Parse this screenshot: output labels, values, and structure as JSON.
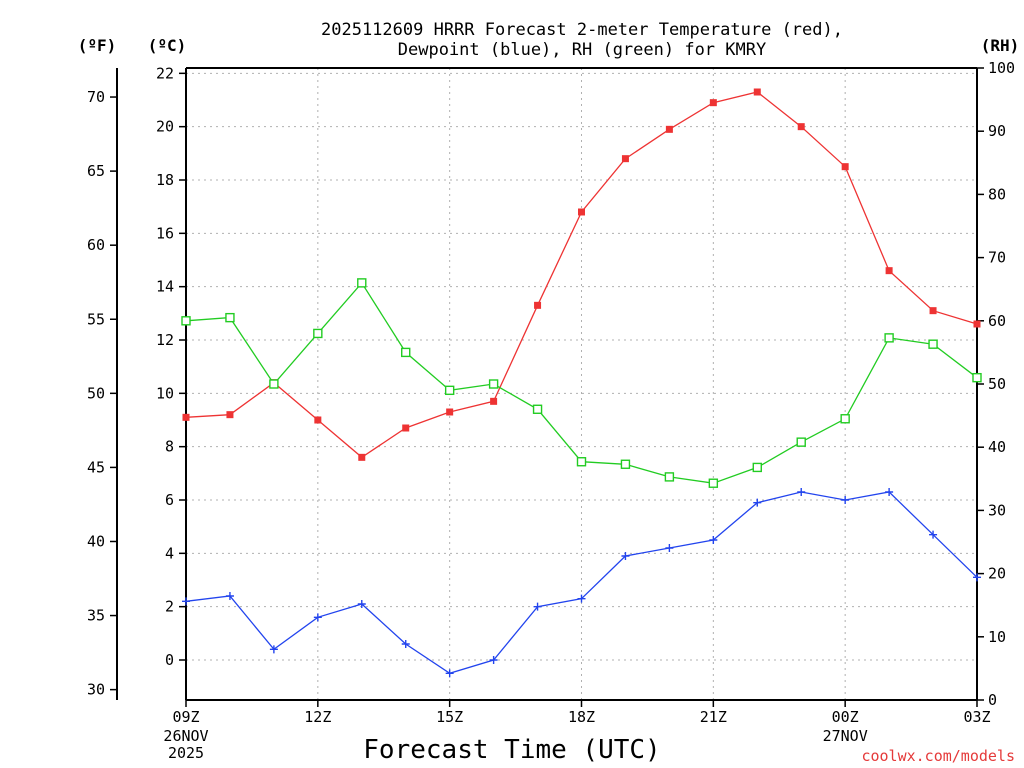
{
  "chart_data": {
    "type": "line",
    "title_lines": [
      "2025112609 HRRR Forecast 2-meter Temperature (red),",
      "Dewpoint (blue), RH (green) for KMRY"
    ],
    "xlabel": "Forecast Time (UTC)",
    "credit": "coolwx.com/models",
    "units": {
      "fahrenheit": "(ºF)",
      "celsius": "(ºC)",
      "rh": "(RH)"
    },
    "x_hours": [
      9,
      10,
      11,
      12,
      13,
      14,
      15,
      16,
      17,
      18,
      19,
      20,
      21,
      22,
      23,
      24,
      25,
      26,
      27
    ],
    "xlim": [
      9,
      27
    ],
    "x_ticks": [
      {
        "hour": 9,
        "label": "09Z",
        "date_lines": [
          "26NOV",
          "2025"
        ]
      },
      {
        "hour": 12,
        "label": "12Z",
        "date_lines": []
      },
      {
        "hour": 15,
        "label": "15Z",
        "date_lines": []
      },
      {
        "hour": 18,
        "label": "18Z",
        "date_lines": []
      },
      {
        "hour": 21,
        "label": "21Z",
        "date_lines": []
      },
      {
        "hour": 24,
        "label": "00Z",
        "date_lines": [
          "27NOV"
        ]
      },
      {
        "hour": 27,
        "label": "03Z",
        "date_lines": []
      }
    ],
    "celsius_axis": {
      "ylim": [
        -1.5,
        22.2
      ],
      "ticks": [
        0,
        2,
        4,
        6,
        8,
        10,
        12,
        14,
        16,
        18,
        20,
        22
      ]
    },
    "fahrenheit_axis": {
      "ticks": [
        30,
        35,
        40,
        45,
        50,
        55,
        60,
        65,
        70
      ]
    },
    "rh_axis": {
      "ylim": [
        0,
        100
      ],
      "ticks": [
        0,
        10,
        20,
        30,
        40,
        50,
        60,
        70,
        80,
        90,
        100
      ]
    },
    "series": [
      {
        "name": "Temperature",
        "units": "C",
        "color": "#ee3333",
        "marker": "filled-square",
        "values": [
          9.1,
          9.2,
          10.4,
          9.0,
          7.6,
          8.7,
          9.3,
          9.7,
          13.3,
          16.8,
          18.8,
          19.9,
          20.9,
          21.3,
          20.0,
          18.5,
          14.6,
          13.1,
          12.6
        ]
      },
      {
        "name": "Dewpoint",
        "units": "C",
        "color": "#2244ee",
        "marker": "plus",
        "values": [
          2.2,
          2.4,
          0.4,
          1.6,
          2.1,
          0.6,
          -0.5,
          0.0,
          2.0,
          2.3,
          3.9,
          4.2,
          4.5,
          5.9,
          6.3,
          6.0,
          6.3,
          4.7,
          3.1
        ]
      },
      {
        "name": "RH",
        "units": "%",
        "color": "#22cc22",
        "marker": "open-square",
        "values": [
          60,
          60.5,
          50,
          58,
          66,
          55,
          49,
          50,
          46,
          37.7,
          37.3,
          35.3,
          34.3,
          36.8,
          40.8,
          44.5,
          57.3,
          56.3,
          51
        ]
      }
    ]
  }
}
